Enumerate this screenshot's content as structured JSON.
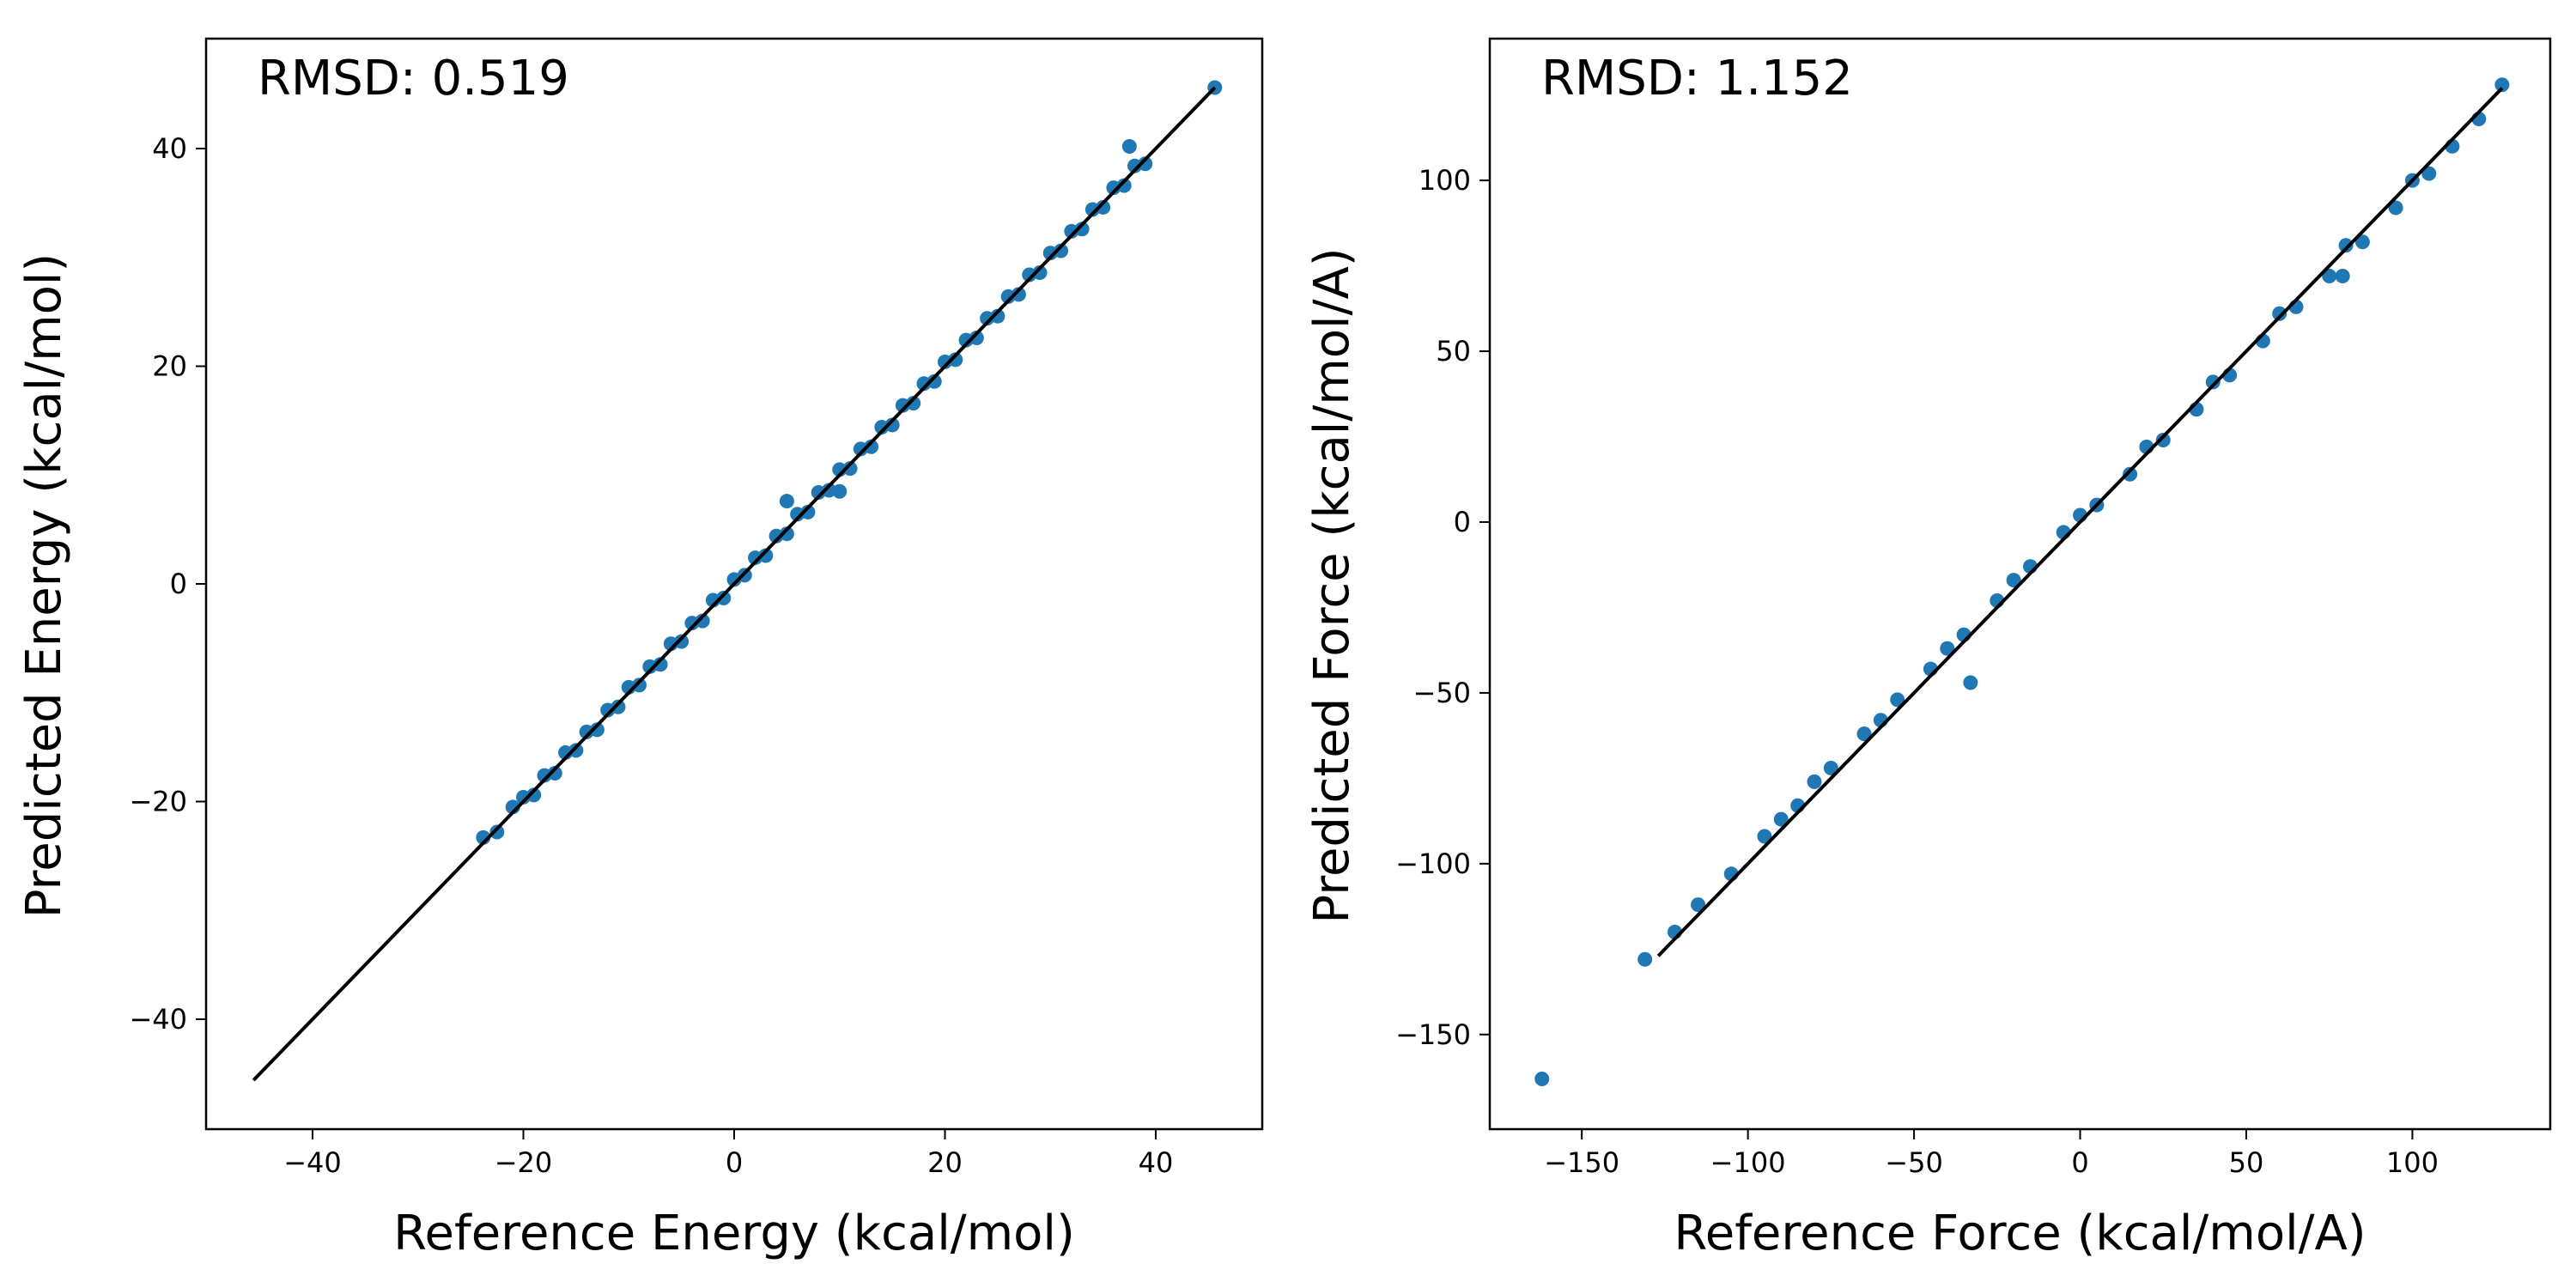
{
  "chart_data": [
    {
      "type": "scatter",
      "annotation": "RMSD: 0.519",
      "xlabel": "Reference Energy (kcal/mol)",
      "ylabel": "Predicted Energy (kcal/mol)",
      "xlim": [
        -50.1,
        50.1
      ],
      "ylim": [
        -50.1,
        50.1
      ],
      "xticks": [
        -40,
        -20,
        0,
        20,
        40
      ],
      "yticks": [
        -40,
        -20,
        0,
        20,
        40
      ],
      "xtick_labels": [
        "−40",
        "−20",
        "0",
        "20",
        "40"
      ],
      "ytick_labels": [
        "−40",
        "−20",
        "0",
        "20",
        "40"
      ],
      "grid": false,
      "marker_color": "#1f77b4",
      "line_color": "#000000",
      "reference_line": {
        "x": [
          -45.6,
          45.6
        ],
        "y": [
          -45.6,
          45.6
        ]
      },
      "series": [
        {
          "x": [
            -23.8,
            -22.5,
            -21.0,
            -20.0,
            -19.0,
            -18.0,
            -17.0,
            -16.0,
            -15.0,
            -14.0,
            -13.0,
            -12.0,
            -11.0,
            -10.0,
            -9.0,
            -8.0,
            -7.0,
            -6.0,
            -5.0,
            -4.0,
            -3.0,
            -2.0,
            -1.0,
            0.0,
            1.0,
            2.0,
            3.0,
            4.0,
            5.0,
            6.0,
            7.0,
            8.0,
            9.0,
            10.0,
            11.0,
            12.0,
            13.0,
            14.0,
            15.0,
            16.0,
            17.0,
            18.0,
            19.0,
            20.0,
            21.0,
            22.0,
            23.0,
            24.0,
            25.0,
            26.0,
            27.0,
            28.0,
            29.0,
            30.0,
            31.0,
            32.0,
            33.0,
            34.0,
            35.0,
            36.0,
            37.0,
            38.0,
            39.0,
            45.6,
            5.0,
            10.0,
            37.5
          ],
          "y": [
            -23.3,
            -22.8,
            -20.5,
            -19.6,
            -19.4,
            -17.6,
            -17.4,
            -15.5,
            -15.3,
            -13.6,
            -13.4,
            -11.6,
            -11.3,
            -9.5,
            -9.3,
            -7.6,
            -7.4,
            -5.5,
            -5.3,
            -3.6,
            -3.4,
            -1.5,
            -1.3,
            0.4,
            0.8,
            2.4,
            2.6,
            4.4,
            4.6,
            6.4,
            6.6,
            8.4,
            8.6,
            10.5,
            10.6,
            12.4,
            12.6,
            14.4,
            14.6,
            16.4,
            16.6,
            18.4,
            18.6,
            20.4,
            20.6,
            22.4,
            22.6,
            24.4,
            24.6,
            26.4,
            26.6,
            28.4,
            28.6,
            30.4,
            30.6,
            32.4,
            32.6,
            34.4,
            34.6,
            36.4,
            36.6,
            38.4,
            38.6,
            45.6,
            7.6,
            8.5,
            40.2
          ]
        }
      ]
    },
    {
      "type": "scatter",
      "annotation": "RMSD: 1.152",
      "xlabel": "Reference Force (kcal/mol/A)",
      "ylabel": "Predicted Force (kcal/mol/A)",
      "xlim": [
        -177.7,
        141.5
      ],
      "ylim": [
        -177.7,
        141.5
      ],
      "xticks": [
        -150,
        -100,
        -50,
        0,
        50,
        100
      ],
      "yticks": [
        -150,
        -100,
        -50,
        0,
        50,
        100
      ],
      "xtick_labels": [
        "−150",
        "−100",
        "−50",
        "0",
        "50",
        "100"
      ],
      "ytick_labels": [
        "−150",
        "−100",
        "−50",
        "0",
        "50",
        "100"
      ],
      "grid": false,
      "marker_color": "#1f77b4",
      "line_color": "#000000",
      "reference_line": {
        "x": [
          -127,
          127
        ],
        "y": [
          -127,
          127
        ]
      },
      "series": [
        {
          "x": [
            -162,
            -131,
            -122,
            -115,
            -105,
            -95,
            -90,
            -85,
            -75,
            -65,
            -55,
            -45,
            -35,
            -25,
            -15,
            -5,
            5,
            15,
            25,
            35,
            45,
            55,
            65,
            75,
            85,
            95,
            105,
            112,
            120,
            127,
            -33,
            79,
            -80,
            -60,
            -40,
            -20,
            0,
            20,
            40,
            60,
            80,
            100
          ],
          "y": [
            -163,
            -128,
            -120,
            -112,
            -103,
            -92,
            -87,
            -83,
            -72,
            -62,
            -52,
            -43,
            -33,
            -23,
            -13,
            -3,
            5,
            14,
            24,
            33,
            43,
            53,
            63,
            72,
            82,
            92,
            102,
            110,
            118,
            128,
            -47,
            72,
            -76,
            -58,
            -37,
            -17,
            2,
            22,
            41,
            61,
            81,
            100
          ]
        }
      ]
    }
  ]
}
